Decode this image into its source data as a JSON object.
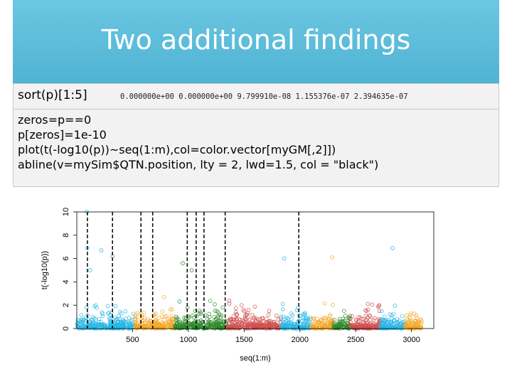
{
  "slide": {
    "title": "Two additional findings",
    "sort_label": "sort(p)[1:5]",
    "sort_output": "0.000000e+00 0.000000e+00 9.799910e-08 1.155376e-07 2.394635e-07",
    "code_lines": [
      "zeros=p==0",
      "p[zeros]=1e-10",
      "plot(t(-log10(p))~seq(1:m),col=color.vector[myGM[,2]])",
      "abline(v=mySim$QTN.position, lty = 2, lwd=1.5, col = \"black\")"
    ],
    "accent_color": "#5bbcd9"
  },
  "chart_data": {
    "type": "scatter",
    "xlabel": "seq(1:m)",
    "ylabel": "t(-log10(p))",
    "xlim": [
      0,
      3200
    ],
    "ylim": [
      0,
      10
    ],
    "x_ticks": [
      "500",
      "1000",
      "1500",
      "2000",
      "2500",
      "3000"
    ],
    "y_ticks": [
      "0",
      "2",
      "4",
      "6",
      "8",
      "10"
    ],
    "qtn_positions": [
      95,
      320,
      575,
      680,
      990,
      1070,
      1140,
      1330,
      1990
    ],
    "chromosomes": [
      {
        "start": 0,
        "end": 520,
        "color": "#29b6e6"
      },
      {
        "start": 520,
        "end": 880,
        "color": "#f4a72a"
      },
      {
        "start": 880,
        "end": 1060,
        "color": "#2e8b2e"
      },
      {
        "start": 1060,
        "end": 1340,
        "color": "#2e8b2e"
      },
      {
        "start": 1340,
        "end": 1600,
        "color": "#d05050"
      },
      {
        "start": 1600,
        "end": 1830,
        "color": "#d05050"
      },
      {
        "start": 1830,
        "end": 2100,
        "color": "#29b6e6"
      },
      {
        "start": 2100,
        "end": 2300,
        "color": "#f4a72a"
      },
      {
        "start": 2300,
        "end": 2450,
        "color": "#2e8b2e"
      },
      {
        "start": 2450,
        "end": 2720,
        "color": "#d05050"
      },
      {
        "start": 2720,
        "end": 2940,
        "color": "#29b6e6"
      },
      {
        "start": 2940,
        "end": 3093,
        "color": "#f4a72a"
      }
    ],
    "highlighted_points": [
      {
        "x": 90,
        "y": 10.0
      },
      {
        "x": 95,
        "y": 6.9
      },
      {
        "x": 220,
        "y": 6.7
      },
      {
        "x": 320,
        "y": 6.2
      },
      {
        "x": 950,
        "y": 5.6
      },
      {
        "x": 1860,
        "y": 6.0
      },
      {
        "x": 2290,
        "y": 6.1
      },
      {
        "x": 2830,
        "y": 6.9
      },
      {
        "x": 1030,
        "y": 5.0
      },
      {
        "x": 120,
        "y": 5.0
      }
    ],
    "grid": false
  }
}
